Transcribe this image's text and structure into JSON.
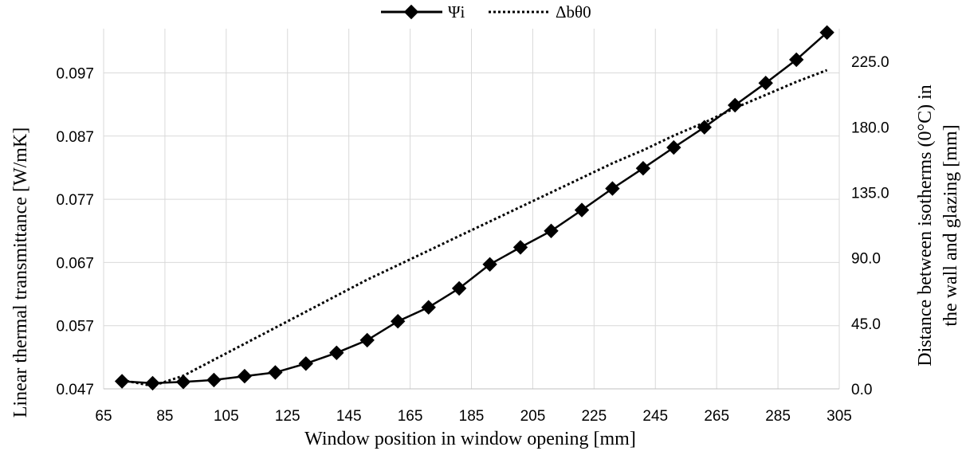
{
  "chart_data": {
    "type": "line",
    "xlabel": "Window position in window opening [mm]",
    "ylabel": "Linear thermal transmittance [W/mK]",
    "ylabel_right_lines": [
      "Distance between isotherms (0°C) in",
      "the wall and glazing [mm]"
    ],
    "xlim": [
      65,
      305
    ],
    "x_ticks": [
      "65",
      "85",
      "105",
      "125",
      "145",
      "165",
      "185",
      "205",
      "225",
      "245",
      "265",
      "285",
      "305"
    ],
    "ylim": [
      0.047,
      0.104
    ],
    "y_ticks": [
      "0.047",
      "0.057",
      "0.067",
      "0.077",
      "0.087",
      "0.097"
    ],
    "y2lim": [
      0,
      247.5
    ],
    "y2_ticks": [
      "0.0",
      "45.0",
      "90.0",
      "135.0",
      "180.0",
      "225.0"
    ],
    "grid": true,
    "legend_position": "top",
    "series": [
      {
        "name": "Ψi",
        "axis": "left",
        "style": "solid-diamond",
        "x": [
          71,
          81,
          91,
          101,
          111,
          121,
          131,
          141,
          151,
          161,
          171,
          181,
          191,
          201,
          211,
          221,
          231,
          241,
          251,
          261,
          271,
          281,
          291,
          301
        ],
        "values": [
          0.0482,
          0.0479,
          0.0481,
          0.0484,
          0.049,
          0.0496,
          0.051,
          0.0527,
          0.0547,
          0.0577,
          0.0599,
          0.0629,
          0.0667,
          0.0694,
          0.072,
          0.0753,
          0.0787,
          0.0819,
          0.0852,
          0.0884,
          0.0919,
          0.0954,
          0.0991,
          0.1034
        ]
      },
      {
        "name": "Δbθ0",
        "axis": "right",
        "style": "dotted",
        "x": [
          71,
          81,
          91,
          101,
          111,
          121,
          131,
          141,
          151,
          161,
          171,
          181,
          191,
          201,
          211,
          221,
          231,
          241,
          251,
          261,
          271,
          281,
          291,
          301
        ],
        "values": [
          6,
          2,
          9,
          20,
          31,
          42,
          53,
          64,
          75,
          85,
          95,
          105,
          115,
          125,
          135,
          145,
          155,
          164,
          174,
          183,
          193,
          202,
          211,
          219
        ]
      }
    ]
  }
}
